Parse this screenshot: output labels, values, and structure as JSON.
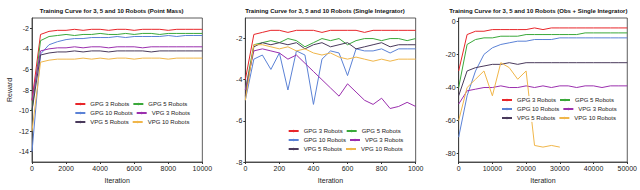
{
  "chart_data": [
    {
      "type": "line",
      "title": "Training Curve for 3, 5 and 10 Robots (Point Mass)",
      "xlabel": "Iteration",
      "ylabel": "Reward",
      "x": [
        0,
        500,
        1000,
        1500,
        2000,
        2500,
        3000,
        3500,
        4000,
        4500,
        5000,
        5500,
        6000,
        6500,
        7000,
        7500,
        8000,
        8500,
        9000,
        9500,
        10000
      ],
      "xlim": [
        0,
        10000
      ],
      "xticks": [
        0,
        2000,
        4000,
        6000,
        8000,
        10000
      ],
      "ylim": [
        -15,
        -1
      ],
      "yticks": [
        -14,
        -12,
        -10,
        -8,
        -6,
        -4,
        -2
      ],
      "grid": false,
      "legend": "lower right",
      "series": [
        {
          "name": "GPG 3 Robots",
          "color": "#e8262a",
          "values": [
            -9,
            -2.6,
            -2.3,
            -2.2,
            -2.2,
            -2.1,
            -2.2,
            -2.1,
            -2.1,
            -2.2,
            -2.1,
            -2.1,
            -2.2,
            -2.1,
            -2.1,
            -2.1,
            -2.2,
            -2.1,
            -2.1,
            -2.1,
            -2.1
          ]
        },
        {
          "name": "GPG 5 Robots",
          "color": "#3aa83a",
          "values": [
            -10,
            -3.2,
            -2.8,
            -2.7,
            -2.6,
            -2.7,
            -2.6,
            -2.6,
            -2.5,
            -2.6,
            -2.6,
            -2.5,
            -2.6,
            -2.5,
            -2.5,
            -2.6,
            -2.5,
            -2.5,
            -2.5,
            -2.5,
            -2.5
          ]
        },
        {
          "name": "GPG 10 Robots",
          "color": "#5b82d6",
          "values": [
            -14,
            -4.5,
            -3.6,
            -3.3,
            -3.1,
            -3.0,
            -3.0,
            -2.9,
            -2.9,
            -2.9,
            -2.8,
            -2.9,
            -2.8,
            -2.8,
            -2.8,
            -2.8,
            -2.7,
            -2.8,
            -2.7,
            -2.7,
            -2.7
          ]
        },
        {
          "name": "VPG 3 Robots",
          "color": "#9b2fae",
          "values": [
            -9,
            -4.2,
            -4.0,
            -3.9,
            -3.9,
            -3.8,
            -3.9,
            -3.8,
            -3.8,
            -3.9,
            -3.8,
            -3.8,
            -3.8,
            -3.9,
            -3.8,
            -3.8,
            -3.8,
            -3.8,
            -3.8,
            -3.8,
            -3.8
          ]
        },
        {
          "name": "VPG 5 Robots",
          "color": "#4a3a5c",
          "values": [
            -10,
            -4.6,
            -4.4,
            -4.3,
            -4.3,
            -4.2,
            -4.3,
            -4.2,
            -4.2,
            -4.3,
            -4.2,
            -4.2,
            -4.2,
            -4.2,
            -4.3,
            -4.2,
            -4.2,
            -4.2,
            -4.2,
            -4.2,
            -4.2
          ]
        },
        {
          "name": "VPG 10 Robots",
          "color": "#f0b64a",
          "values": [
            -12,
            -5.3,
            -5.1,
            -5.0,
            -5.0,
            -5.0,
            -4.9,
            -5.0,
            -4.9,
            -5.0,
            -4.9,
            -4.9,
            -5.0,
            -4.9,
            -4.9,
            -4.9,
            -5.0,
            -4.9,
            -4.9,
            -4.9,
            -4.9
          ]
        }
      ]
    },
    {
      "type": "line",
      "title": "Training Curve for 3, 5 and 10 Robots (Single Integrator)",
      "xlabel": "Iteration",
      "x": [
        0,
        50,
        100,
        150,
        200,
        250,
        300,
        350,
        400,
        450,
        500,
        550,
        600,
        650,
        700,
        750,
        800,
        850,
        900,
        950,
        1000
      ],
      "xlim": [
        0,
        1000
      ],
      "xticks": [
        0,
        200,
        400,
        600,
        800,
        1000
      ],
      "ylim": [
        -8,
        -1
      ],
      "yticks": [
        -8,
        -6,
        -4,
        -2
      ],
      "grid": false,
      "legend": "lower right",
      "series": [
        {
          "name": "GPG 3 Robots",
          "color": "#e8262a",
          "values": [
            -4,
            -1.8,
            -1.7,
            -1.6,
            -1.6,
            -1.7,
            -1.6,
            -1.6,
            -1.6,
            -1.7,
            -1.6,
            -1.6,
            -1.6,
            -1.6,
            -1.7,
            -1.6,
            -1.6,
            -1.6,
            -1.6,
            -1.6,
            -1.6
          ]
        },
        {
          "name": "GPG 5 Robots",
          "color": "#3aa83a",
          "values": [
            -4.5,
            -2.3,
            -2.2,
            -2.1,
            -2.2,
            -2.0,
            -2.1,
            -2.4,
            -2.2,
            -2.0,
            -2.1,
            -2.0,
            -2.3,
            -2.1,
            -2.0,
            -2.0,
            -2.1,
            -2.0,
            -2.0,
            -2.1,
            -2.0
          ]
        },
        {
          "name": "GPG 10 Robots",
          "color": "#5b82d6",
          "values": [
            -5,
            -3.0,
            -2.8,
            -3.5,
            -2.7,
            -4.5,
            -2.6,
            -2.8,
            -5.2,
            -3.0,
            -2.6,
            -2.7,
            -3.8,
            -2.5,
            -2.6,
            -2.6,
            -2.5,
            -2.7,
            -2.5,
            -2.5,
            -2.5
          ]
        },
        {
          "name": "VPG 3 Robots",
          "color": "#9b2fae",
          "values": [
            -4.5,
            -2.6,
            -2.5,
            -2.6,
            -2.7,
            -3.0,
            -2.8,
            -3.2,
            -3.6,
            -4.0,
            -4.4,
            -4.8,
            -4.2,
            -4.6,
            -5.0,
            -5.2,
            -4.9,
            -5.4,
            -5.3,
            -5.1,
            -5.3
          ]
        },
        {
          "name": "VPG 5 Robots",
          "color": "#4a3a5c",
          "values": [
            -4.8,
            -2.4,
            -2.2,
            -2.3,
            -2.2,
            -2.3,
            -2.2,
            -2.5,
            -2.3,
            -2.2,
            -2.4,
            -2.3,
            -2.2,
            -2.5,
            -2.4,
            -2.3,
            -2.2,
            -2.4,
            -2.3,
            -2.3,
            -2.3
          ]
        },
        {
          "name": "VPG 10 Robots",
          "color": "#f0b64a",
          "values": [
            -5,
            -2.3,
            -2.3,
            -2.4,
            -2.5,
            -2.4,
            -2.6,
            -2.5,
            -2.7,
            -2.8,
            -2.7,
            -2.9,
            -3.0,
            -2.9,
            -3.0,
            -3.1,
            -3.0,
            -3.1,
            -3.0,
            -3.0,
            -3.0
          ]
        }
      ]
    },
    {
      "type": "line",
      "title": "Training Curve for 3, 5 and 10 Robots (Obs + Single Integrator)",
      "xlabel": "Iteration",
      "x": [
        0,
        2500,
        5000,
        7500,
        10000,
        12500,
        15000,
        17500,
        20000,
        22500,
        25000,
        27500,
        30000,
        32500,
        35000,
        37500,
        40000,
        42500,
        45000,
        47500,
        50000
      ],
      "xlim": [
        0,
        50000
      ],
      "xticks": [
        0,
        10000,
        20000,
        30000,
        40000,
        50000
      ],
      "ylim": [
        -85,
        2
      ],
      "yticks": [
        -80,
        -60,
        -40,
        -20,
        0
      ],
      "grid": false,
      "legend": "lower right",
      "series": [
        {
          "name": "GPG 3 Robots",
          "color": "#e8262a",
          "values": [
            -30,
            -8,
            -6,
            -6,
            -5,
            -5,
            -5,
            -5,
            -5,
            -4,
            -5,
            -4,
            -4,
            -4,
            -4,
            -4,
            -4,
            -4,
            -4,
            -4,
            -4
          ]
        },
        {
          "name": "GPG 5 Robots",
          "color": "#3aa83a",
          "values": [
            -40,
            -14,
            -11,
            -10,
            -10,
            -9,
            -9,
            -9,
            -8,
            -8,
            -8,
            -8,
            -8,
            -8,
            -8,
            -7,
            -7,
            -7,
            -7,
            -7,
            -7
          ]
        },
        {
          "name": "GPG 10 Robots",
          "color": "#5b82d6",
          "values": [
            -70,
            -45,
            -30,
            -20,
            -16,
            -14,
            -13,
            -12,
            -12,
            -11,
            -11,
            -11,
            -10,
            -10,
            -10,
            -10,
            -10,
            -10,
            -10,
            -10,
            -10
          ]
        },
        {
          "name": "VPG 3 Robots",
          "color": "#9b2fae",
          "values": [
            -50,
            -42,
            -41,
            -40,
            -40,
            -39,
            -40,
            -40,
            -39,
            -40,
            -39,
            -40,
            -39,
            -39,
            -40,
            -39,
            -39,
            -40,
            -39,
            -39,
            -39
          ]
        },
        {
          "name": "VPG 5 Robots",
          "color": "#4a3a5c",
          "values": [
            -45,
            -30,
            -28,
            -27,
            -26,
            -26,
            -25,
            -26,
            -25,
            -25,
            -25,
            -25,
            -25,
            -25,
            -25,
            -25,
            -25,
            -25,
            -25,
            -25,
            -25
          ]
        },
        {
          "name": "VPG 10 Robots",
          "color": "#f0b64a",
          "values": [
            -60,
            -40,
            -35,
            -30,
            -45,
            -25,
            -28,
            -35,
            -30,
            -75,
            -76,
            -75,
            -76,
            null,
            null,
            null,
            null,
            null,
            null,
            null,
            null
          ]
        }
      ]
    }
  ]
}
